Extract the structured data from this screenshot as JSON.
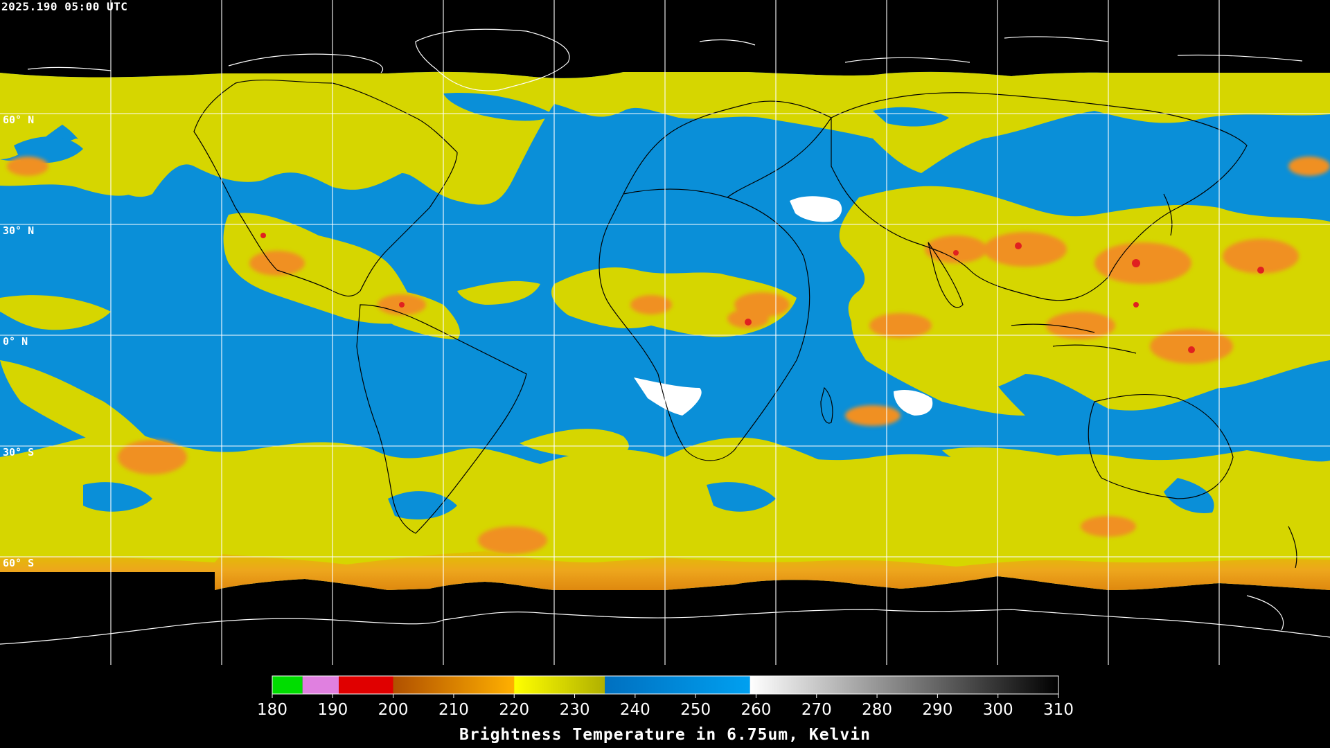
{
  "header": {
    "timestamp": "2025.190 05:00 UTC"
  },
  "latitude_labels": [
    "60° N",
    "30° N",
    "0° N",
    "30° S",
    "60° S"
  ],
  "legend": {
    "title": "Brightness Temperature in 6.75um, Kelvin",
    "ticks": [
      "180",
      "190",
      "200",
      "210",
      "220",
      "230",
      "240",
      "250",
      "260",
      "270",
      "280",
      "290",
      "300",
      "310"
    ],
    "range_kelvin": [
      180,
      310
    ],
    "segments": [
      {
        "from": 180,
        "to": 185,
        "color": "#00dd00"
      },
      {
        "from": 185,
        "to": 191,
        "color": "#e080e0"
      },
      {
        "from": 191,
        "to": 200,
        "color": "#e00000"
      },
      {
        "from": 200,
        "to": 210,
        "color": "#c06000"
      },
      {
        "from": 210,
        "to": 220,
        "color": "#ffa000"
      },
      {
        "from": 220,
        "to": 235,
        "color": "#e0e000"
      },
      {
        "from": 235,
        "to": 259,
        "color": "#0090e0"
      },
      {
        "from": 259,
        "to": 310,
        "color": "#ffffff"
      }
    ]
  },
  "colors": {
    "background": "#000000",
    "water_vapor_dry": "#0a8fd8",
    "water_vapor_moist": "#d6d600",
    "cold_cloud": "#f09020",
    "very_cold": "#e02020",
    "warm_dry": "#ffffff",
    "grid": "#ffffff",
    "coastline_on_image": "#000000",
    "coastline_off_image": "#ffffff"
  }
}
